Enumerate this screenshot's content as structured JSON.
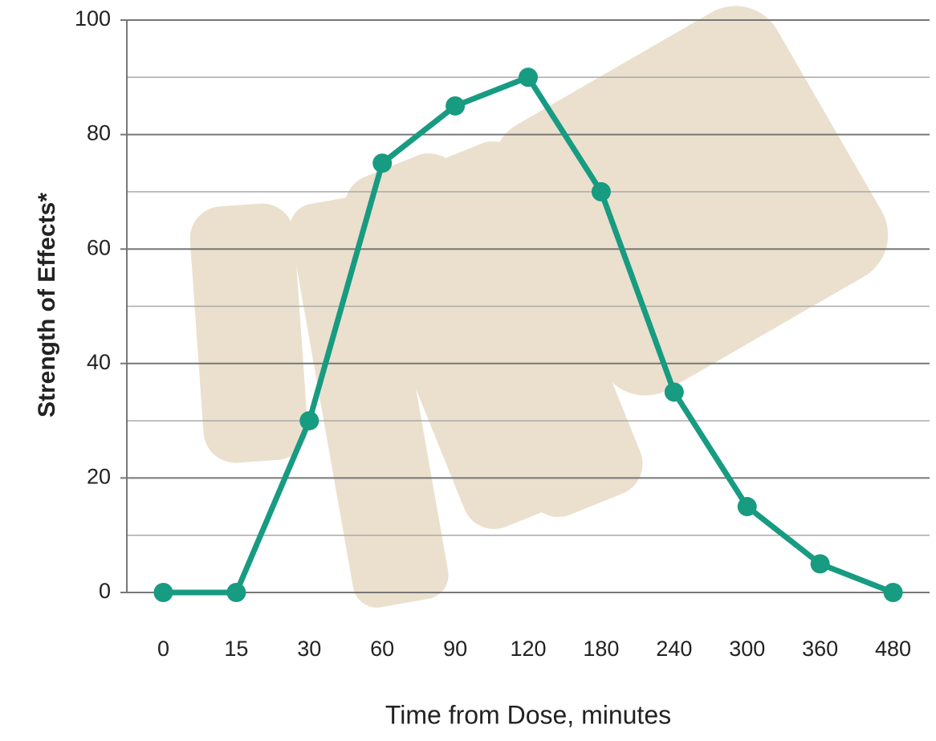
{
  "chart_data": {
    "type": "line",
    "x_label": "Time from Dose, minutes",
    "y_label": "Strength of Effects*",
    "categories": [
      "0",
      "15",
      "30",
      "60",
      "90",
      "120",
      "180",
      "240",
      "300",
      "360",
      "480"
    ],
    "values": [
      0,
      0,
      30,
      75,
      85,
      90,
      70,
      35,
      15,
      5,
      0
    ],
    "color": "#179b81",
    "ylim": [
      0,
      100
    ],
    "yticks": [
      0,
      20,
      40,
      60,
      80,
      100
    ],
    "minor_yticks": [
      10,
      30,
      50,
      70,
      90
    ],
    "grid": true
  }
}
